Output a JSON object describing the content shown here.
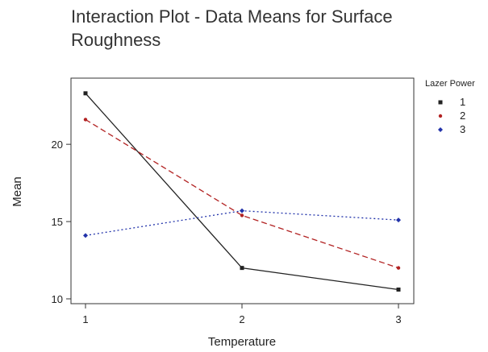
{
  "chart_data": {
    "type": "line",
    "title_lines": [
      "Interaction Plot - Data Means for Surface",
      "Roughness"
    ],
    "xlabel": "Temperature",
    "ylabel": "Mean",
    "x": [
      1,
      2,
      3
    ],
    "xlim": [
      1,
      3
    ],
    "ylim": [
      10,
      23.5
    ],
    "yticks": [
      10,
      15,
      20
    ],
    "xticks": [
      1,
      2,
      3
    ],
    "grid": false,
    "legend_title": "Lazer Power",
    "legend_position": "right",
    "series": [
      {
        "name": "1",
        "values": [
          23.3,
          12.0,
          10.6
        ],
        "color": "#222222",
        "dash": "solid",
        "marker": "square"
      },
      {
        "name": "2",
        "values": [
          21.6,
          15.4,
          12.0
        ],
        "color": "#b22222",
        "dash": "dashed",
        "marker": "circle"
      },
      {
        "name": "3",
        "values": [
          14.1,
          15.7,
          15.1
        ],
        "color": "#2233aa",
        "dash": "dotted",
        "marker": "diamond"
      }
    ]
  }
}
